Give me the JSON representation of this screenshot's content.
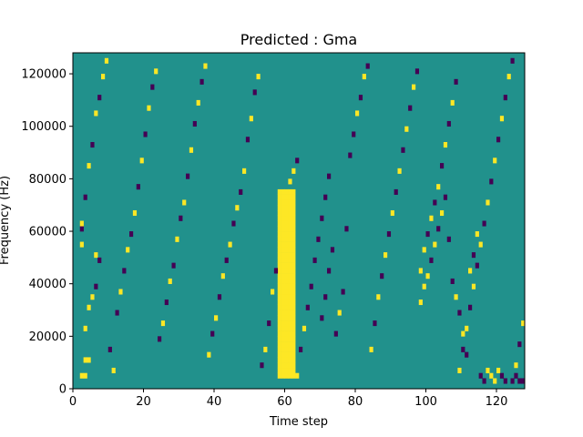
{
  "chart_data": {
    "type": "heatmap",
    "title": "Predicted : Gma",
    "xlabel": "Time step",
    "ylabel": "Frequency (Hz)",
    "xlim": [
      0,
      128
    ],
    "ylim": [
      0,
      128000
    ],
    "xticks": [
      0,
      20,
      40,
      60,
      80,
      100,
      120
    ],
    "yticks": [
      0,
      20000,
      40000,
      60000,
      80000,
      100000,
      120000
    ],
    "n_time_steps": 128,
    "n_freq_bins": 64,
    "colormap": "viridis",
    "colors": {
      "background": "#21918c",
      "high": "#fde725",
      "low": "#440154",
      "axes": "#000000"
    },
    "background_value": 0.5,
    "dense_column": {
      "x": [
        58,
        62
      ],
      "y_range": [
        4000,
        76000
      ],
      "value": 1
    },
    "cells": [
      [
        2,
        4,
        1
      ],
      [
        3,
        4,
        1
      ],
      [
        3,
        10,
        1
      ],
      [
        4,
        10,
        1
      ],
      [
        3,
        22,
        1
      ],
      [
        4,
        30,
        1
      ],
      [
        5,
        34,
        1
      ],
      [
        6,
        38,
        0
      ],
      [
        6,
        50,
        1
      ],
      [
        7,
        48,
        0
      ],
      [
        2,
        54,
        1
      ],
      [
        2,
        60,
        0
      ],
      [
        2,
        62,
        1
      ],
      [
        3,
        72,
        0
      ],
      [
        4,
        84,
        1
      ],
      [
        5,
        92,
        0
      ],
      [
        6,
        104,
        1
      ],
      [
        7,
        110,
        0
      ],
      [
        8,
        118,
        1
      ],
      [
        9,
        124,
        1
      ],
      [
        10,
        14,
        0
      ],
      [
        11,
        6,
        1
      ],
      [
        12,
        28,
        0
      ],
      [
        13,
        36,
        1
      ],
      [
        14,
        44,
        0
      ],
      [
        15,
        52,
        1
      ],
      [
        16,
        58,
        0
      ],
      [
        17,
        66,
        1
      ],
      [
        18,
        76,
        0
      ],
      [
        19,
        86,
        1
      ],
      [
        20,
        96,
        0
      ],
      [
        21,
        106,
        1
      ],
      [
        22,
        114,
        0
      ],
      [
        23,
        120,
        1
      ],
      [
        24,
        18,
        0
      ],
      [
        25,
        24,
        1
      ],
      [
        26,
        32,
        0
      ],
      [
        27,
        40,
        1
      ],
      [
        28,
        46,
        0
      ],
      [
        29,
        56,
        1
      ],
      [
        30,
        64,
        0
      ],
      [
        31,
        70,
        1
      ],
      [
        32,
        80,
        0
      ],
      [
        33,
        90,
        1
      ],
      [
        34,
        100,
        0
      ],
      [
        35,
        108,
        1
      ],
      [
        36,
        116,
        0
      ],
      [
        37,
        122,
        1
      ],
      [
        38,
        12,
        1
      ],
      [
        39,
        20,
        0
      ],
      [
        40,
        26,
        1
      ],
      [
        41,
        34,
        0
      ],
      [
        42,
        42,
        1
      ],
      [
        43,
        48,
        0
      ],
      [
        44,
        54,
        1
      ],
      [
        45,
        62,
        0
      ],
      [
        46,
        68,
        1
      ],
      [
        47,
        74,
        0
      ],
      [
        48,
        82,
        1
      ],
      [
        49,
        94,
        0
      ],
      [
        50,
        102,
        1
      ],
      [
        51,
        112,
        0
      ],
      [
        52,
        118,
        1
      ],
      [
        53,
        8,
        0
      ],
      [
        54,
        14,
        1
      ],
      [
        55,
        24,
        0
      ],
      [
        56,
        36,
        1
      ],
      [
        57,
        44,
        0
      ],
      [
        63,
        4,
        1
      ],
      [
        64,
        14,
        0
      ],
      [
        65,
        22,
        1
      ],
      [
        66,
        30,
        0
      ],
      [
        67,
        38,
        0
      ],
      [
        68,
        48,
        0
      ],
      [
        69,
        56,
        0
      ],
      [
        70,
        64,
        0
      ],
      [
        71,
        72,
        0
      ],
      [
        72,
        80,
        0
      ],
      [
        70,
        26,
        0
      ],
      [
        71,
        34,
        0
      ],
      [
        72,
        44,
        0
      ],
      [
        73,
        52,
        0
      ],
      [
        74,
        20,
        0
      ],
      [
        75,
        28,
        1
      ],
      [
        76,
        36,
        0
      ],
      [
        77,
        60,
        0
      ],
      [
        78,
        88,
        0
      ],
      [
        79,
        96,
        0
      ],
      [
        80,
        104,
        1
      ],
      [
        81,
        110,
        0
      ],
      [
        82,
        118,
        1
      ],
      [
        83,
        122,
        0
      ],
      [
        84,
        14,
        1
      ],
      [
        85,
        24,
        0
      ],
      [
        86,
        34,
        1
      ],
      [
        87,
        42,
        0
      ],
      [
        88,
        50,
        1
      ],
      [
        89,
        58,
        0
      ],
      [
        90,
        66,
        1
      ],
      [
        91,
        74,
        0
      ],
      [
        92,
        82,
        1
      ],
      [
        93,
        90,
        0
      ],
      [
        94,
        98,
        1
      ],
      [
        95,
        106,
        0
      ],
      [
        96,
        114,
        1
      ],
      [
        97,
        120,
        0
      ],
      [
        98,
        44,
        1
      ],
      [
        99,
        52,
        1
      ],
      [
        100,
        58,
        0
      ],
      [
        101,
        64,
        1
      ],
      [
        102,
        70,
        0
      ],
      [
        103,
        76,
        1
      ],
      [
        104,
        84,
        0
      ],
      [
        105,
        92,
        1
      ],
      [
        106,
        100,
        0
      ],
      [
        107,
        108,
        1
      ],
      [
        108,
        116,
        0
      ],
      [
        109,
        6,
        1
      ],
      [
        110,
        14,
        0
      ],
      [
        111,
        22,
        1
      ],
      [
        112,
        30,
        0
      ],
      [
        113,
        38,
        1
      ],
      [
        114,
        46,
        0
      ],
      [
        115,
        54,
        1
      ],
      [
        116,
        62,
        0
      ],
      [
        117,
        70,
        1
      ],
      [
        118,
        78,
        0
      ],
      [
        119,
        86,
        1
      ],
      [
        120,
        94,
        0
      ],
      [
        121,
        102,
        1
      ],
      [
        122,
        110,
        0
      ],
      [
        123,
        118,
        1
      ],
      [
        124,
        124,
        0
      ],
      [
        125,
        8,
        1
      ],
      [
        126,
        16,
        0
      ],
      [
        127,
        24,
        1
      ],
      [
        115,
        4,
        0
      ],
      [
        116,
        2,
        0
      ],
      [
        117,
        6,
        1
      ],
      [
        118,
        4,
        1
      ],
      [
        119,
        2,
        1
      ],
      [
        120,
        6,
        1
      ],
      [
        121,
        4,
        0
      ],
      [
        122,
        2,
        0
      ],
      [
        124,
        2,
        0
      ],
      [
        125,
        4,
        0
      ],
      [
        126,
        2,
        0
      ],
      [
        127,
        2,
        0
      ],
      [
        98,
        32,
        1
      ],
      [
        99,
        38,
        1
      ],
      [
        100,
        42,
        1
      ],
      [
        101,
        48,
        0
      ],
      [
        102,
        54,
        1
      ],
      [
        103,
        60,
        0
      ],
      [
        104,
        66,
        1
      ],
      [
        105,
        72,
        0
      ],
      [
        106,
        56,
        0
      ],
      [
        107,
        40,
        0
      ],
      [
        108,
        34,
        1
      ],
      [
        109,
        28,
        0
      ],
      [
        110,
        20,
        1
      ],
      [
        111,
        12,
        0
      ],
      [
        112,
        44,
        1
      ],
      [
        113,
        50,
        0
      ],
      [
        114,
        58,
        1
      ],
      [
        61,
        78,
        1
      ],
      [
        62,
        82,
        1
      ],
      [
        63,
        86,
        0
      ]
    ]
  }
}
